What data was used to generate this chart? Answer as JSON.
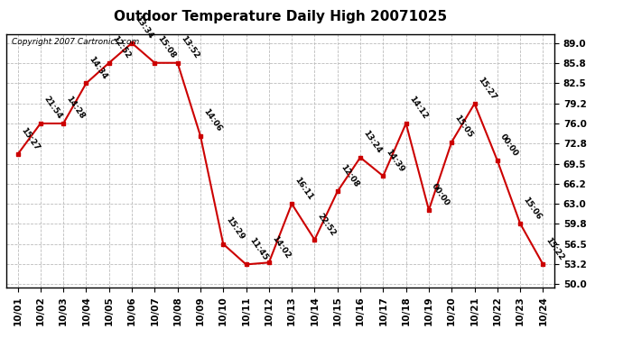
{
  "title": "Outdoor Temperature Daily High 20071025",
  "copyright": "Copyright 2007 Cartronics.com",
  "x_labels": [
    "10/01",
    "10/02",
    "10/03",
    "10/04",
    "10/05",
    "10/06",
    "10/07",
    "10/08",
    "10/09",
    "10/10",
    "10/11",
    "10/12",
    "10/13",
    "10/14",
    "10/15",
    "10/16",
    "10/17",
    "10/18",
    "10/19",
    "10/20",
    "10/21",
    "10/22",
    "10/23",
    "10/24"
  ],
  "y_values": [
    71.0,
    76.0,
    76.0,
    82.5,
    85.8,
    89.0,
    85.8,
    85.8,
    74.0,
    56.5,
    53.2,
    53.5,
    63.0,
    57.2,
    65.0,
    70.5,
    67.5,
    76.0,
    62.0,
    73.0,
    79.2,
    70.0,
    59.8,
    53.2
  ],
  "point_labels": [
    "15:27",
    "21:54",
    "14:28",
    "14:34",
    "12:52",
    "13:34",
    "15:08",
    "13:52",
    "14:06",
    "15:29",
    "11:45",
    "14:02",
    "16:11",
    "22:52",
    "12:08",
    "13:24",
    "14:39",
    "14:12",
    "00:00",
    "15:05",
    "15:27",
    "00:00",
    "15:06",
    "15:22"
  ],
  "y_ticks": [
    50.0,
    53.2,
    56.5,
    59.8,
    63.0,
    66.2,
    69.5,
    72.8,
    76.0,
    79.2,
    82.5,
    85.8,
    89.0
  ],
  "ylim": [
    49.5,
    90.5
  ],
  "line_color": "#cc0000",
  "marker_color": "#cc0000",
  "bg_color": "#ffffff",
  "plot_bg_color": "#ffffff",
  "grid_color": "#bbbbbb",
  "title_fontsize": 11,
  "label_fontsize": 6.5,
  "tick_fontsize": 7.5,
  "copyright_fontsize": 6.5
}
